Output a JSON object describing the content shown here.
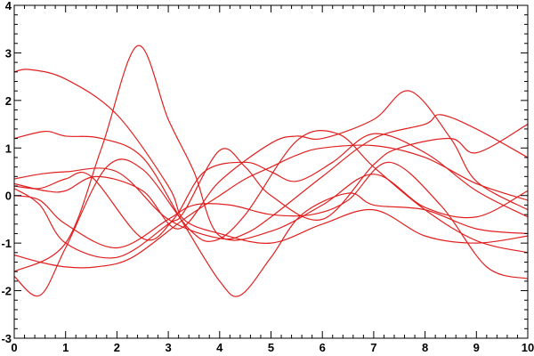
{
  "chart_data": {
    "type": "line",
    "title": "",
    "xlabel": "",
    "ylabel": "",
    "xlim": [
      0,
      10
    ],
    "ylim": [
      -3,
      4
    ],
    "x_ticks": [
      "0",
      "1",
      "2",
      "3",
      "4",
      "5",
      "6",
      "7",
      "8",
      "9",
      "10"
    ],
    "y_ticks": [
      "-3",
      "-2",
      "-1",
      "0",
      "1",
      "2",
      "3",
      "4"
    ],
    "grid": false,
    "legend": "none",
    "line_color": "#e02020",
    "series": [
      {
        "x": [
          0,
          0.3,
          1,
          2,
          3,
          3.3,
          4,
          5,
          6,
          7,
          8,
          9,
          10
        ],
        "y": [
          2.6,
          2.65,
          2.45,
          1.7,
          0.2,
          -0.5,
          -0.8,
          -1.0,
          -0.6,
          -0.3,
          -0.85,
          -1.0,
          -0.85
        ]
      },
      {
        "x": [
          0,
          1,
          1.7,
          2.4,
          3,
          3.5,
          4,
          5,
          6,
          7,
          8,
          9,
          10
        ],
        "y": [
          -1.6,
          -1.0,
          1.0,
          3.15,
          1.6,
          0.5,
          -0.85,
          -0.75,
          -0.2,
          0.45,
          -0.25,
          -0.45,
          0.1
        ]
      },
      {
        "x": [
          0,
          0.6,
          1,
          1.7,
          2.5,
          3.3,
          4,
          4.4,
          5,
          5.6,
          6.5,
          7,
          8,
          9,
          10
        ],
        "y": [
          1.2,
          1.35,
          1.25,
          1.2,
          0.8,
          -0.6,
          -1.8,
          -2.1,
          -1.3,
          -0.4,
          0.05,
          -0.2,
          -0.3,
          -0.7,
          -0.8
        ]
      },
      {
        "x": [
          0,
          0.5,
          1,
          2,
          3,
          4,
          4.5,
          5,
          6,
          7,
          8,
          8.3,
          9,
          10
        ],
        "y": [
          0.35,
          0.45,
          0.5,
          0.5,
          -0.5,
          -0.9,
          -0.8,
          -0.45,
          0.4,
          1.2,
          1.5,
          1.7,
          1.4,
          0.8
        ]
      },
      {
        "x": [
          0,
          0.6,
          1,
          1.6,
          2.5,
          3.2,
          4,
          5,
          5.5,
          6,
          7,
          7.7,
          8.5,
          9,
          10
        ],
        "y": [
          0.25,
          0.1,
          0.1,
          0.4,
          0.1,
          -0.7,
          0.3,
          1.1,
          1.25,
          1.2,
          1.6,
          2.2,
          1.2,
          0.3,
          -0.3
        ]
      },
      {
        "x": [
          0,
          0.5,
          1,
          2,
          3,
          3.5,
          4.2,
          5,
          5.8,
          6.5,
          7.3,
          8.3,
          9.2,
          10
        ],
        "y": [
          0.0,
          -0.1,
          -0.6,
          -1.1,
          -0.5,
          -0.2,
          -0.2,
          -0.4,
          -0.4,
          -0.1,
          0.7,
          -0.2,
          -1.5,
          -1.75
        ]
      },
      {
        "x": [
          0,
          0.5,
          1,
          1.6,
          2.3,
          3.3,
          4,
          4.5,
          5,
          5.5,
          6,
          7,
          8,
          9,
          10
        ],
        "y": [
          -1.25,
          -1.4,
          -1.5,
          -1.5,
          -1.3,
          -0.5,
          0.0,
          0.35,
          0.6,
          0.85,
          1.0,
          1.05,
          0.8,
          0.25,
          -0.1
        ]
      },
      {
        "x": [
          0,
          0.5,
          1,
          2,
          3,
          3.3,
          4,
          4.5,
          5,
          6,
          7,
          7.5,
          8.5,
          9,
          10
        ],
        "y": [
          0.15,
          -0.2,
          -1.0,
          -1.3,
          -0.6,
          -0.35,
          0.95,
          0.6,
          0.0,
          -0.5,
          0.65,
          1.0,
          1.2,
          0.9,
          1.5
        ]
      },
      {
        "x": [
          0,
          0.5,
          1,
          1.8,
          2.5,
          3.4,
          3.9,
          4.5,
          5.5,
          6.3,
          7,
          8,
          9,
          10
        ],
        "y": [
          -1.7,
          -2.1,
          -1.1,
          0.6,
          0.55,
          -0.7,
          -0.95,
          -0.4,
          1.15,
          1.3,
          0.6,
          -0.3,
          -0.95,
          -1.2
        ]
      },
      {
        "x": [
          0,
          0.5,
          1,
          1.5,
          2.5,
          3.1,
          3.7,
          4.5,
          5,
          5.5,
          6.2,
          7,
          8,
          9,
          10
        ],
        "y": [
          0.2,
          0.15,
          0.35,
          0.4,
          -0.9,
          -0.5,
          0.5,
          0.7,
          0.5,
          0.3,
          0.7,
          1.3,
          0.9,
          0.1,
          -0.45
        ]
      }
    ]
  }
}
